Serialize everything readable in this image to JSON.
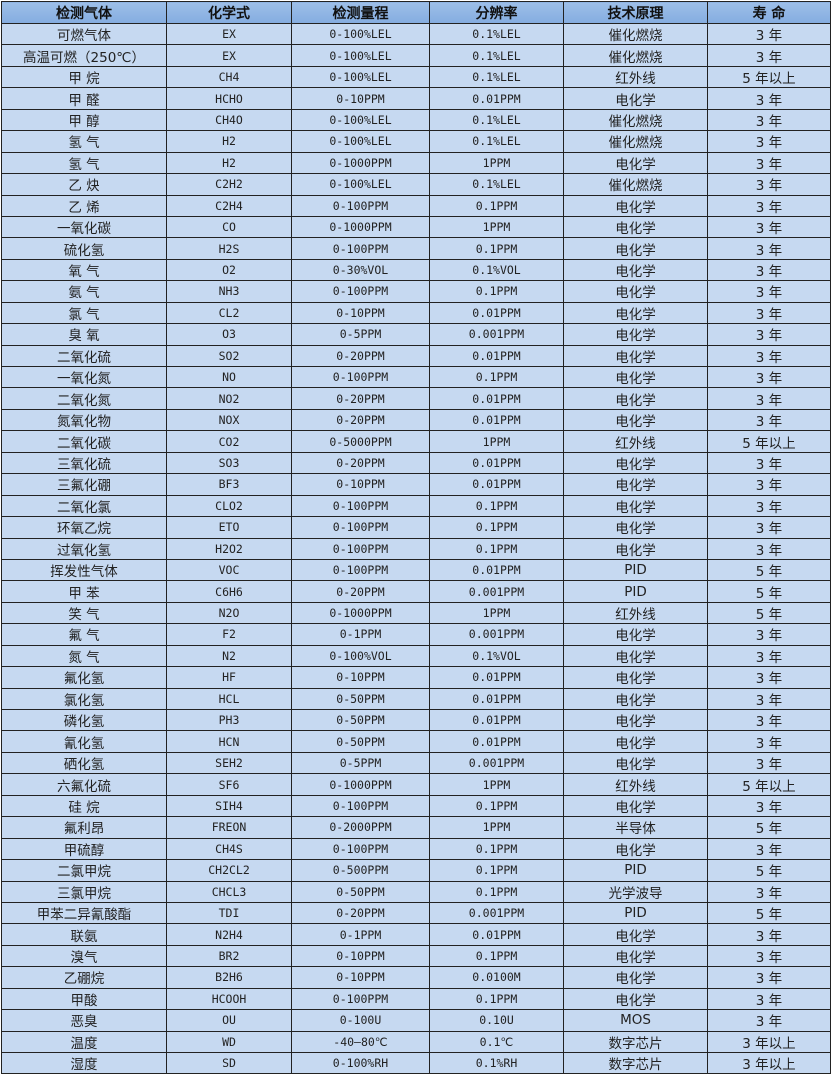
{
  "table": {
    "headers": [
      "检测气体",
      "化学式",
      "检测量程",
      "分辨率",
      "技术原理",
      "寿 命"
    ],
    "rows": [
      [
        "可燃气体",
        "EX",
        "0-100%LEL",
        "0.1%LEL",
        "催化燃烧",
        "3 年"
      ],
      [
        "高温可燃（250℃）",
        "EX",
        "0-100%LEL",
        "0.1%LEL",
        "催化燃烧",
        "3 年"
      ],
      [
        "甲 烷",
        "CH4",
        "0-100%LEL",
        "0.1%LEL",
        "红外线",
        "5 年以上"
      ],
      [
        "甲 醛",
        "HCHO",
        "0-10PPM",
        "0.01PPM",
        "电化学",
        "3 年"
      ],
      [
        "甲 醇",
        "CH4O",
        "0-100%LEL",
        "0.1%LEL",
        "催化燃烧",
        "3 年"
      ],
      [
        "氢 气",
        "H2",
        "0-100%LEL",
        "0.1%LEL",
        "催化燃烧",
        "3 年"
      ],
      [
        "氢 气",
        "H2",
        "0-1000PPM",
        "1PPM",
        "电化学",
        "3 年"
      ],
      [
        "乙 炔",
        "C2H2",
        "0-100%LEL",
        "0.1%LEL",
        "催化燃烧",
        "3 年"
      ],
      [
        "乙 烯",
        "C2H4",
        "0-100PPM",
        "0.1PPM",
        "电化学",
        "3 年"
      ],
      [
        "一氧化碳",
        "CO",
        "0-1000PPM",
        "1PPM",
        "电化学",
        "3 年"
      ],
      [
        "硫化氢",
        "H2S",
        "0-100PPM",
        "0.1PPM",
        "电化学",
        "3 年"
      ],
      [
        "氧 气",
        "O2",
        "0-30%VOL",
        "0.1%VOL",
        "电化学",
        "3 年"
      ],
      [
        "氨 气",
        "NH3",
        "0-100PPM",
        "0.1PPM",
        "电化学",
        "3 年"
      ],
      [
        "氯 气",
        "CL2",
        "0-10PPM",
        "0.01PPM",
        "电化学",
        "3 年"
      ],
      [
        "臭 氧",
        "O3",
        "0-5PPM",
        "0.001PPM",
        "电化学",
        "3 年"
      ],
      [
        "二氧化硫",
        "SO2",
        "0-20PPM",
        "0.01PPM",
        "电化学",
        "3 年"
      ],
      [
        "一氧化氮",
        "NO",
        "0-100PPM",
        "0.1PPM",
        "电化学",
        "3 年"
      ],
      [
        "二氧化氮",
        "NO2",
        "0-20PPM",
        "0.01PPM",
        "电化学",
        "3 年"
      ],
      [
        "氮氧化物",
        "NOX",
        "0-20PPM",
        "0.01PPM",
        "电化学",
        "3 年"
      ],
      [
        "二氧化碳",
        "CO2",
        "0-5000PPM",
        "1PPM",
        "红外线",
        "5 年以上"
      ],
      [
        "三氧化硫",
        "SO3",
        "0-20PPM",
        "0.01PPM",
        "电化学",
        "3 年"
      ],
      [
        "三氟化硼",
        "BF3",
        "0-10PPM",
        "0.01PPM",
        "电化学",
        "3 年"
      ],
      [
        "二氧化氯",
        "CLO2",
        "0-100PPM",
        "0.1PPM",
        "电化学",
        "3 年"
      ],
      [
        "环氧乙烷",
        "ETO",
        "0-100PPM",
        "0.1PPM",
        "电化学",
        "3 年"
      ],
      [
        "过氧化氢",
        "H2O2",
        "0-100PPM",
        "0.1PPM",
        "电化学",
        "3 年"
      ],
      [
        "挥发性气体",
        "VOC",
        "0-100PPM",
        "0.01PPM",
        "PID",
        "5 年"
      ],
      [
        "甲 苯",
        "C6H6",
        "0-20PPM",
        "0.001PPM",
        "PID",
        "5 年"
      ],
      [
        "笑 气",
        "N2O",
        "0-1000PPM",
        "1PPM",
        "红外线",
        "5 年"
      ],
      [
        "氟 气",
        "F2",
        "0-1PPM",
        "0.001PPM",
        "电化学",
        "3 年"
      ],
      [
        "氮 气",
        "N2",
        "0-100%VOL",
        "0.1%VOL",
        "电化学",
        "3 年"
      ],
      [
        "氟化氢",
        "HF",
        "0-10PPM",
        "0.01PPM",
        "电化学",
        "3 年"
      ],
      [
        "氯化氢",
        "HCL",
        "0-50PPM",
        "0.01PPM",
        "电化学",
        "3 年"
      ],
      [
        "磷化氢",
        "PH3",
        "0-50PPM",
        "0.01PPM",
        "电化学",
        "3 年"
      ],
      [
        "氰化氢",
        "HCN",
        "0-50PPM",
        "0.01PPM",
        "电化学",
        "3 年"
      ],
      [
        "硒化氢",
        "SEH2",
        "0-5PPM",
        "0.001PPM",
        "电化学",
        "3 年"
      ],
      [
        "六氟化硫",
        "SF6",
        "0-1000PPM",
        "1PPM",
        "红外线",
        "5 年以上"
      ],
      [
        "硅 烷",
        "SIH4",
        "0-100PPM",
        "0.1PPM",
        "电化学",
        "3 年"
      ],
      [
        "氟利昂",
        "FREON",
        "0-2000PPM",
        "1PPM",
        "半导体",
        "5 年"
      ],
      [
        "甲硫醇",
        "CH4S",
        "0-100PPM",
        "0.1PPM",
        "电化学",
        "3 年"
      ],
      [
        "二氯甲烷",
        "CH2CL2",
        "0-500PPM",
        "0.1PPM",
        "PID",
        "5 年"
      ],
      [
        "三氯甲烷",
        "CHCL3",
        "0-50PPM",
        "0.1PPM",
        "光学波导",
        "3 年"
      ],
      [
        "甲苯二异氰酸酯",
        "TDI",
        "0-20PPM",
        "0.001PPM",
        "PID",
        "5 年"
      ],
      [
        "联氨",
        "N2H4",
        "0-1PPM",
        "0.01PPM",
        "电化学",
        "3 年"
      ],
      [
        "溴气",
        "BR2",
        "0-10PPM",
        "0.1PPM",
        "电化学",
        "3 年"
      ],
      [
        "乙硼烷",
        "B2H6",
        "0-10PPM",
        "0.0100M",
        "电化学",
        "3 年"
      ],
      [
        "甲酸",
        "HCOOH",
        "0-100PPM",
        "0.1PPM",
        "电化学",
        "3 年"
      ],
      [
        "恶臭",
        "OU",
        "0-100U",
        "0.10U",
        "MOS",
        "3 年"
      ],
      [
        "温度",
        "WD",
        "-40—80℃",
        "0.1℃",
        "数字芯片",
        "3 年以上"
      ],
      [
        "湿度",
        "SD",
        "0-100%RH",
        "0.1%RH",
        "数字芯片",
        "3 年以上"
      ]
    ]
  }
}
